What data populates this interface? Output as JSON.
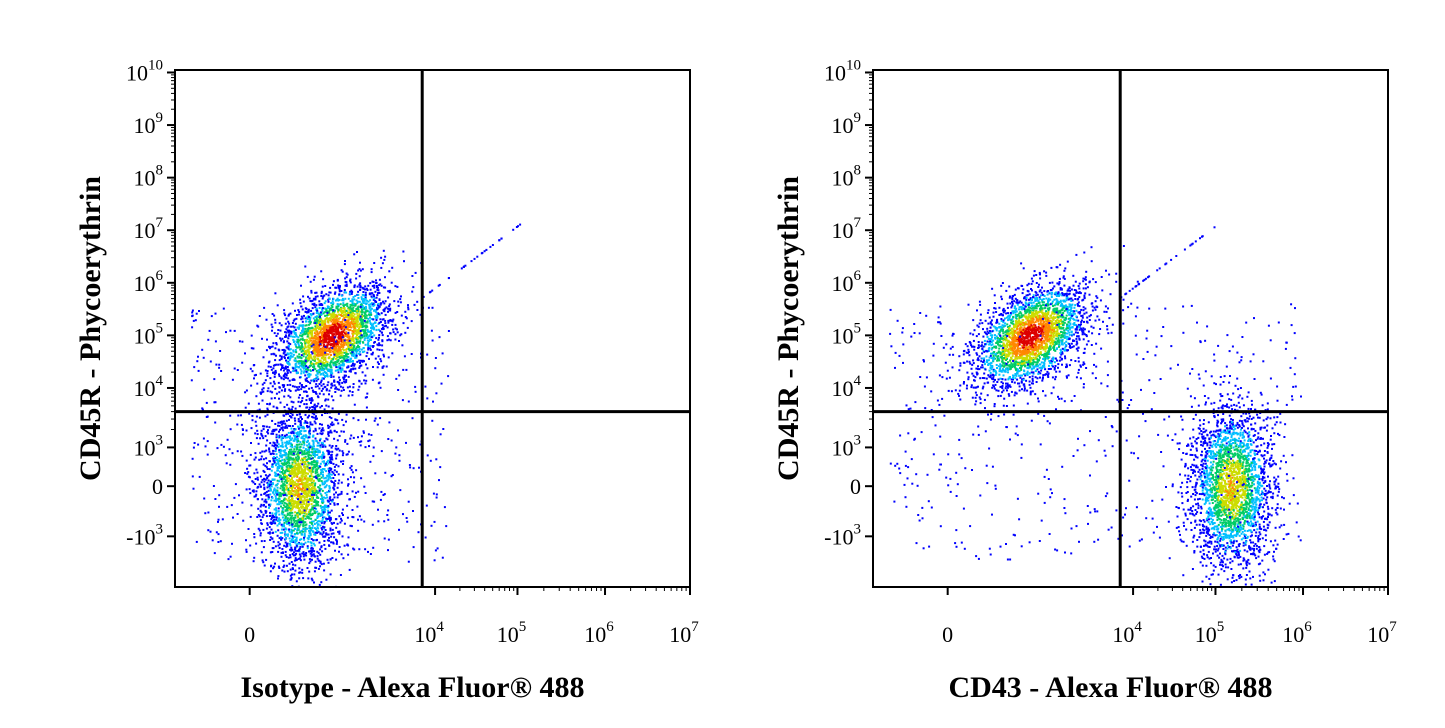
{
  "chart_data": [
    {
      "type": "scatter",
      "xlabel": "Isotype - Alexa Fluor® 488",
      "ylabel": "CD45R - Phycoerythrin",
      "x_scale": "biexponential",
      "y_scale": "biexponential",
      "xlim": [
        -3000,
        10000000
      ],
      "ylim": [
        -30000,
        10000000000
      ],
      "x_ticks": [
        {
          "value": 0,
          "base": "0",
          "exp": ""
        },
        {
          "value": 10000,
          "base": "10",
          "exp": "4"
        },
        {
          "value": 100000,
          "base": "10",
          "exp": "5"
        },
        {
          "value": 1000000,
          "base": "10",
          "exp": "6"
        },
        {
          "value": 10000000,
          "base": "10",
          "exp": "7"
        }
      ],
      "y_ticks": [
        {
          "value": 10000000000,
          "base": "10",
          "exp": "10"
        },
        {
          "value": 1000000000,
          "base": "10",
          "exp": "9"
        },
        {
          "value": 100000000,
          "base": "10",
          "exp": "8"
        },
        {
          "value": 10000000,
          "base": "10",
          "exp": "7"
        },
        {
          "value": 1000000,
          "base": "10",
          "exp": "6"
        },
        {
          "value": 100000,
          "base": "10",
          "exp": "5"
        },
        {
          "value": 10000,
          "base": "10",
          "exp": "4"
        },
        {
          "value": 1000,
          "base": "10",
          "exp": "3"
        },
        {
          "value": 0,
          "base": "0",
          "exp": ""
        },
        {
          "value": -1000,
          "base": "-10",
          "exp": "3"
        }
      ],
      "quadrant_gate": {
        "x": 7500,
        "y": 4000
      },
      "populations": [
        {
          "name": "",
          "x_center": 1000,
          "y_center": 100000,
          "density": "high",
          "color": "#e00000"
        },
        {
          "name": "",
          "x_center": 600,
          "y_center": 0,
          "density": "medium",
          "color": "#33cc33"
        }
      ],
      "density_colors": [
        "#0000ff",
        "#00bfff",
        "#00cc66",
        "#ccdd00",
        "#ff8800",
        "#dd0000"
      ]
    },
    {
      "type": "scatter",
      "xlabel": "CD43 - Alexa Fluor® 488",
      "ylabel": "CD45R - Phycoerythrin",
      "x_scale": "biexponential",
      "y_scale": "biexponential",
      "xlim": [
        -3000,
        10000000
      ],
      "ylim": [
        -30000,
        10000000000
      ],
      "x_ticks": [
        {
          "value": 0,
          "base": "0",
          "exp": ""
        },
        {
          "value": 10000,
          "base": "10",
          "exp": "4"
        },
        {
          "value": 100000,
          "base": "10",
          "exp": "5"
        },
        {
          "value": 1000000,
          "base": "10",
          "exp": "6"
        },
        {
          "value": 10000000,
          "base": "10",
          "exp": "7"
        }
      ],
      "y_ticks": [
        {
          "value": 10000000000,
          "base": "10",
          "exp": "10"
        },
        {
          "value": 1000000000,
          "base": "10",
          "exp": "9"
        },
        {
          "value": 100000000,
          "base": "10",
          "exp": "8"
        },
        {
          "value": 10000000,
          "base": "10",
          "exp": "7"
        },
        {
          "value": 1000000,
          "base": "10",
          "exp": "6"
        },
        {
          "value": 100000,
          "base": "10",
          "exp": "5"
        },
        {
          "value": 10000,
          "base": "10",
          "exp": "4"
        },
        {
          "value": 1000,
          "base": "10",
          "exp": "3"
        },
        {
          "value": 0,
          "base": "0",
          "exp": ""
        },
        {
          "value": -1000,
          "base": "-10",
          "exp": "3"
        }
      ],
      "quadrant_gate": {
        "x": 7500,
        "y": 4000
      },
      "populations": [
        {
          "name": "",
          "x_center": 1000,
          "y_center": 100000,
          "density": "high",
          "color": "#e00000"
        },
        {
          "name": "",
          "x_center": 150000,
          "y_center": 0,
          "density": "medium",
          "color": "#33cc33"
        }
      ],
      "density_colors": [
        "#0000ff",
        "#00bfff",
        "#00cc66",
        "#ccdd00",
        "#ff8800",
        "#dd0000"
      ]
    }
  ]
}
